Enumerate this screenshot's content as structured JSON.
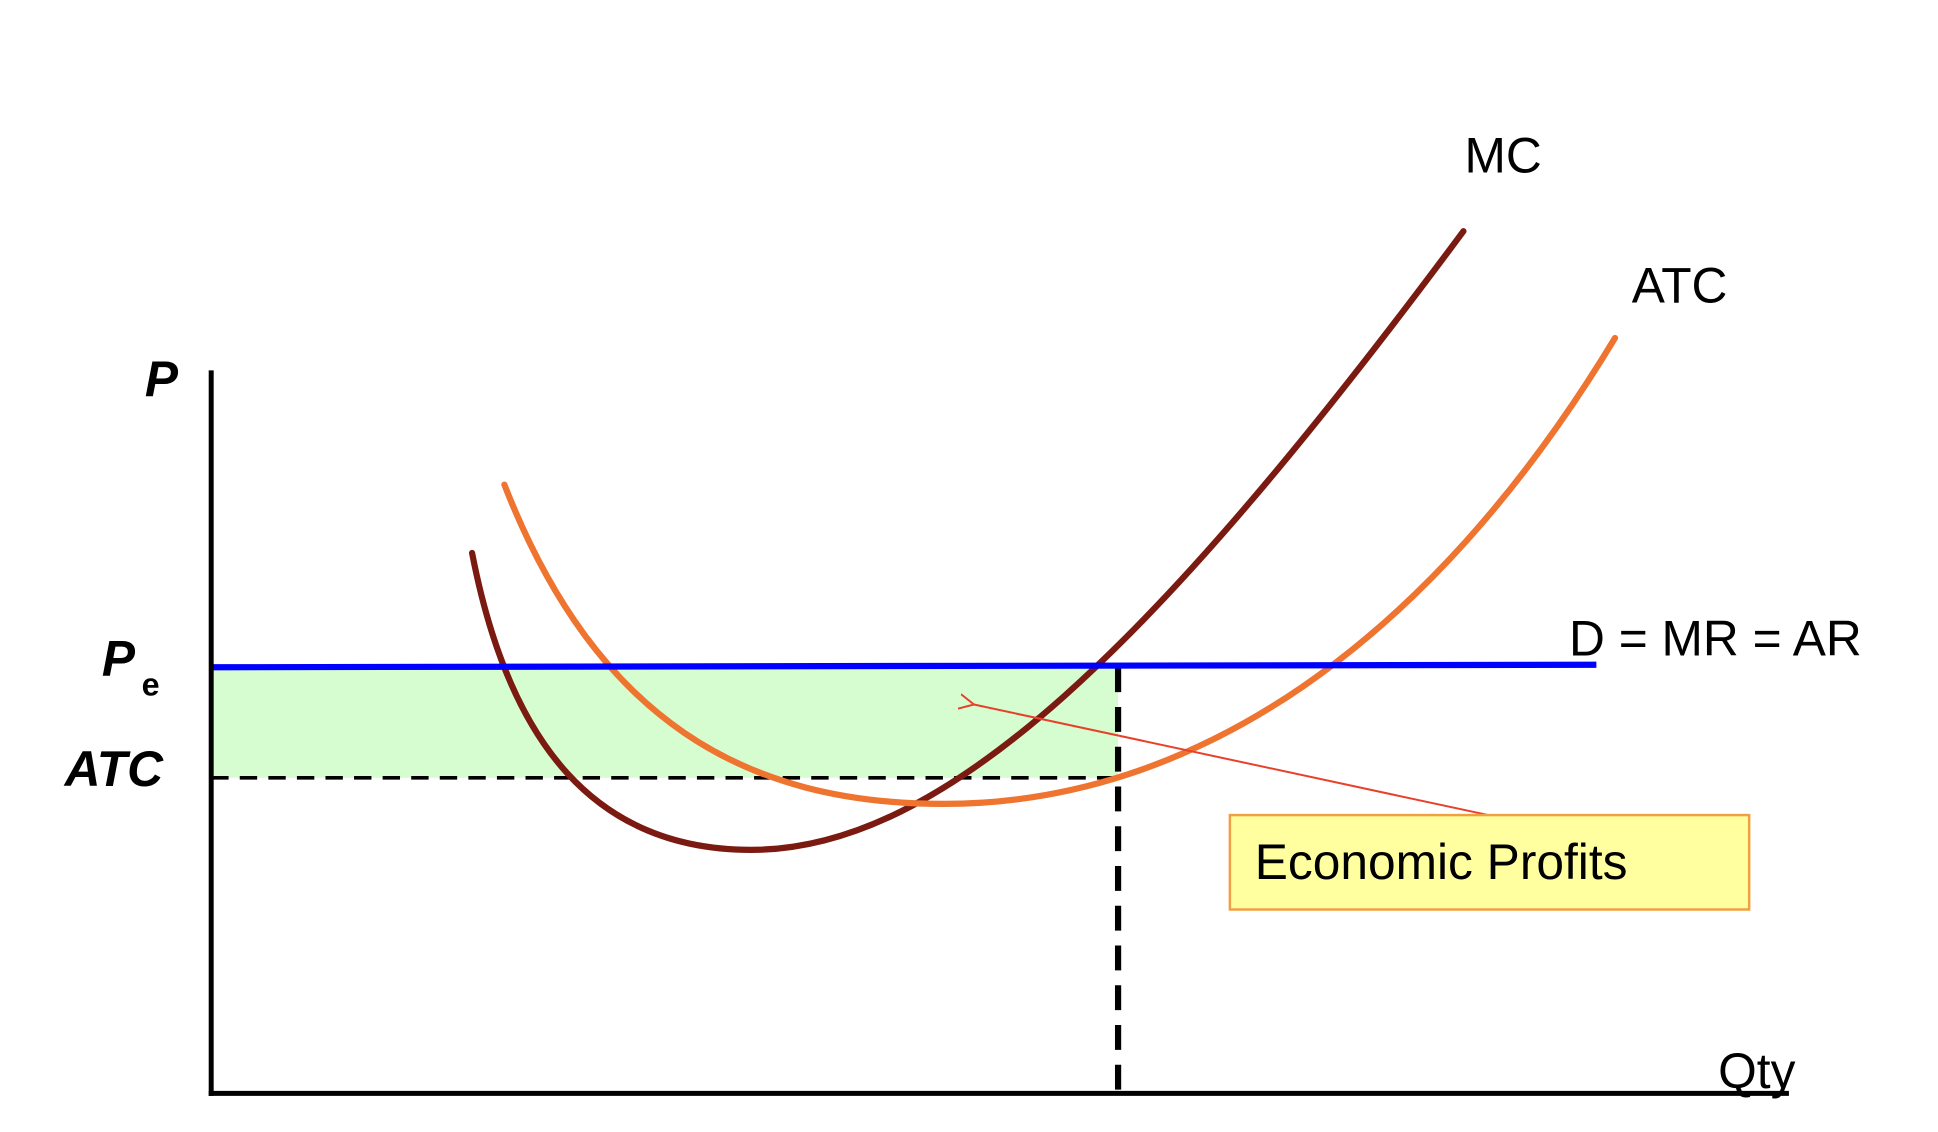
{
  "axes": {
    "y": "P",
    "x": "Qty"
  },
  "curves": {
    "mc": "MC",
    "atc": "ATC",
    "demand": "D = MR = AR"
  },
  "levels": {
    "price": {
      "main": "P",
      "sub": "e"
    },
    "cost": "ATC"
  },
  "callout": "Economic Profits"
}
